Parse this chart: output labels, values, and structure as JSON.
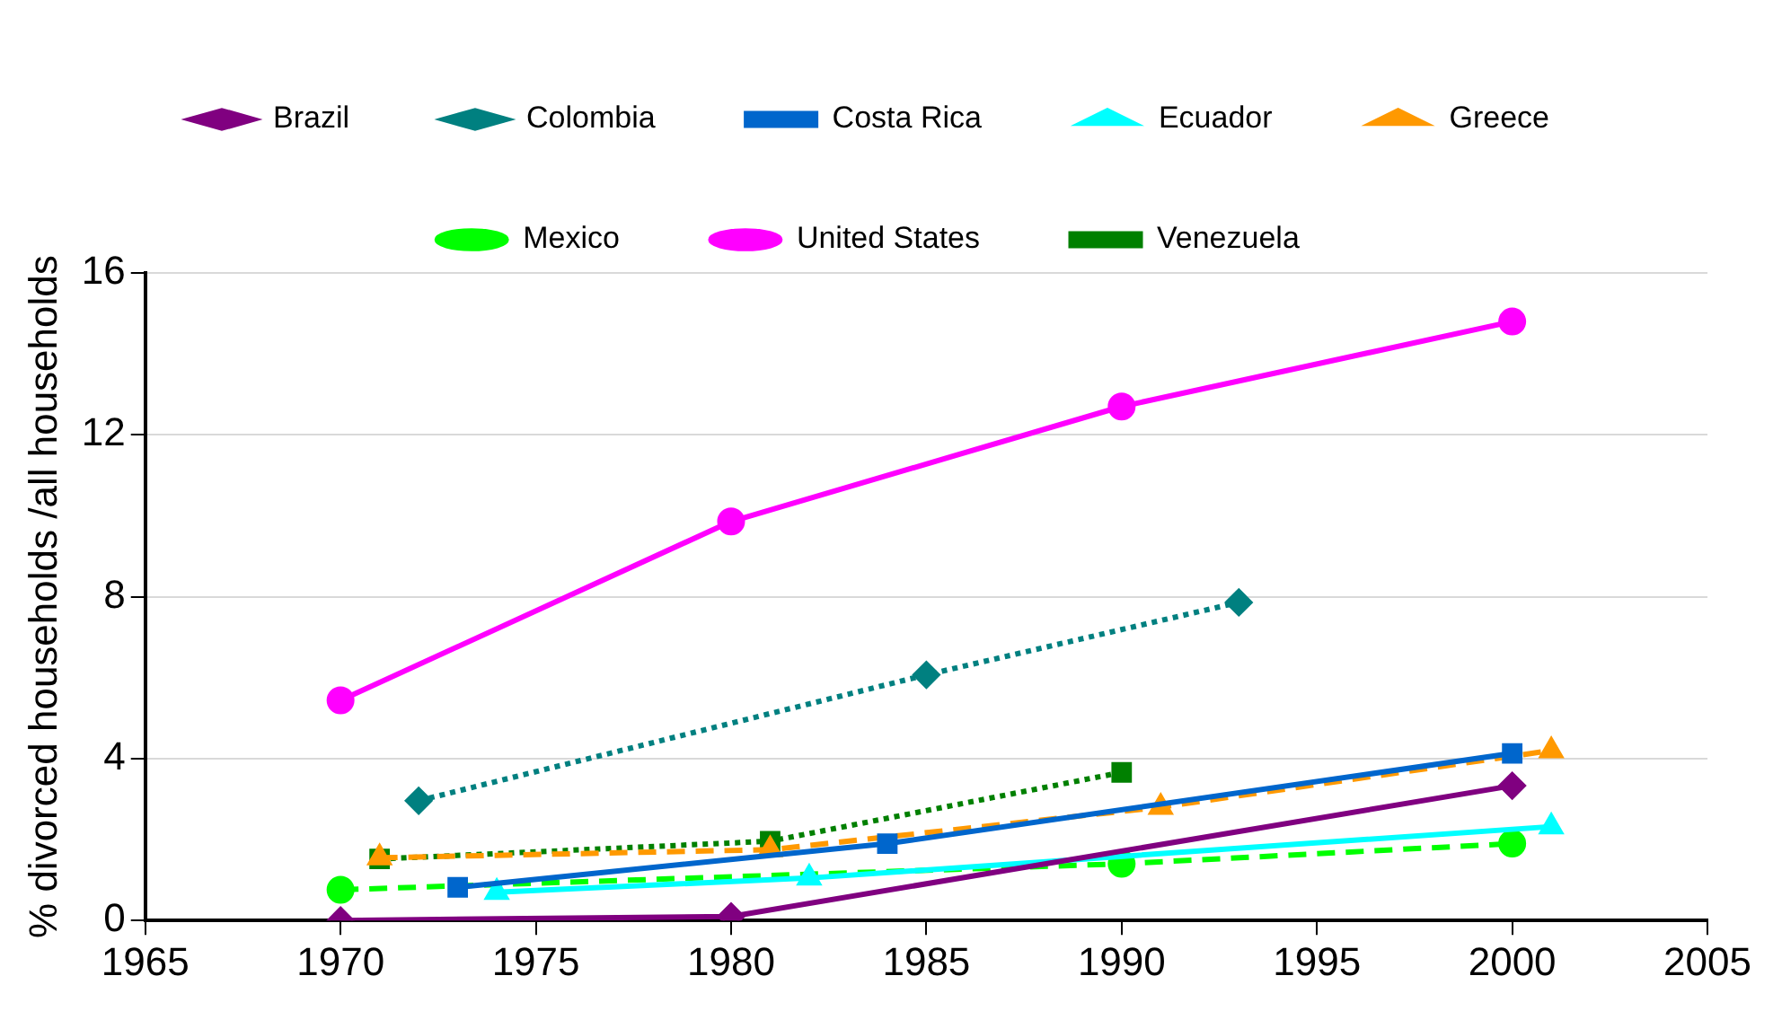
{
  "chart_data": {
    "type": "line",
    "ylabel": "% divorced households /all households",
    "xlim": [
      1965,
      2005
    ],
    "xticks": [
      1965,
      1970,
      1975,
      1980,
      1985,
      1990,
      1995,
      2000,
      2005
    ],
    "ylim": [
      0,
      16
    ],
    "yticks": [
      0,
      4,
      8,
      12,
      16
    ],
    "grid": "y",
    "legend": "top",
    "series": [
      {
        "name": "Brazil",
        "color": "#800080",
        "marker": "diamond",
        "line_style": "solid",
        "x": [
          1970,
          1980,
          2000
        ],
        "values": [
          0,
          0.1,
          3.33
        ]
      },
      {
        "name": "Colombia",
        "color": "#008080",
        "marker": "diamond",
        "line_style": "dotted",
        "x": [
          1972,
          1985,
          1993
        ],
        "values": [
          2.96,
          6.07,
          7.86
        ]
      },
      {
        "name": "Costa Rica",
        "color": "#0066cc",
        "marker": "square",
        "line_style": "solid",
        "x": [
          1973,
          1984,
          2000
        ],
        "values": [
          0.82,
          1.9,
          4.13
        ]
      },
      {
        "name": "Ecuador",
        "color": "#00ffff",
        "marker": "triangle",
        "line_style": "solid",
        "x": [
          1974,
          1982,
          2001
        ],
        "values": [
          0.7,
          1.05,
          2.32
        ]
      },
      {
        "name": "Greece",
        "color": "#ff9900",
        "marker": "triangle",
        "line_style": "dashed",
        "x": [
          1971,
          1981,
          1991,
          2001
        ],
        "values": [
          1.55,
          1.75,
          2.8,
          4.2
        ]
      },
      {
        "name": "Mexico",
        "color": "#00ff00",
        "marker": "circle",
        "line_style": "dashed",
        "x": [
          1970,
          1990,
          2000
        ],
        "values": [
          0.76,
          1.4,
          1.9
        ]
      },
      {
        "name": "United States",
        "color": "#ff00ff",
        "marker": "circle",
        "line_style": "solid",
        "x": [
          1970,
          1980,
          1990,
          2000
        ],
        "values": [
          5.44,
          9.86,
          12.7,
          14.8
        ]
      },
      {
        "name": "Venezuela",
        "color": "#008000",
        "marker": "square",
        "line_style": "dotted",
        "x": [
          1971,
          1981,
          1990
        ],
        "values": [
          1.52,
          1.96,
          3.66
        ]
      }
    ]
  }
}
